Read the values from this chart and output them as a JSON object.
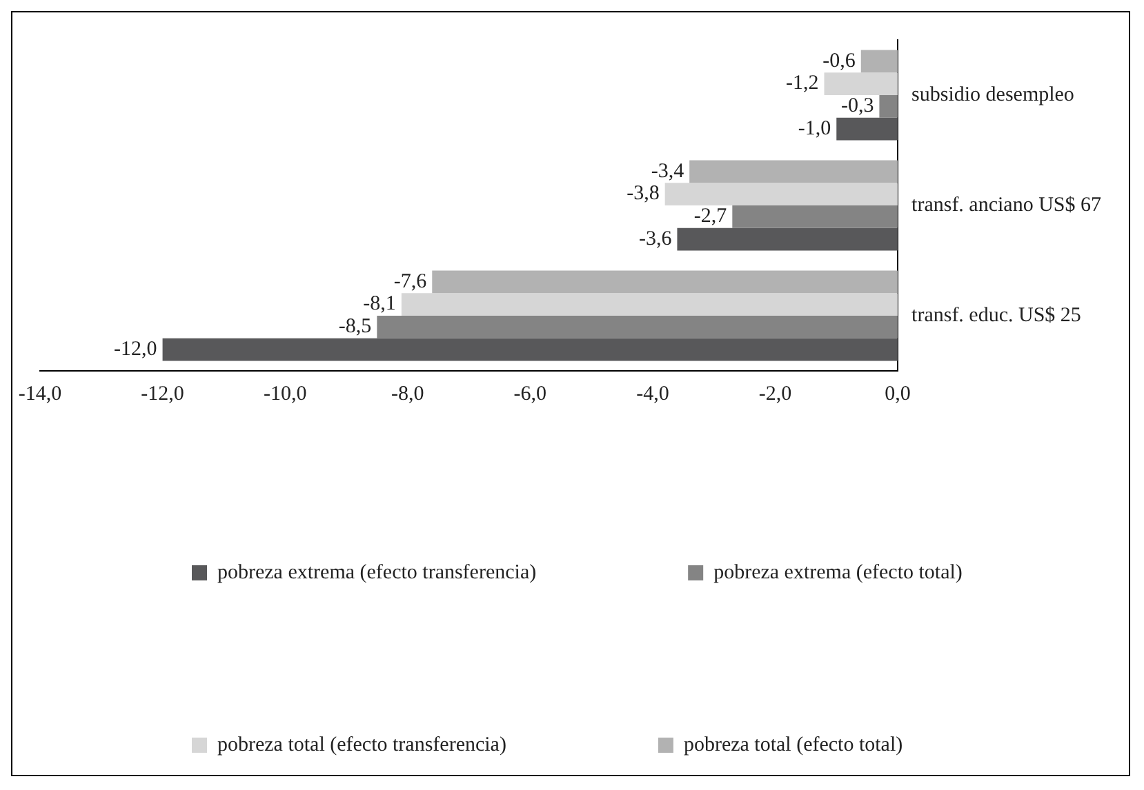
{
  "chart_data": {
    "type": "bar",
    "orientation": "horizontal",
    "categories": [
      "subsidio desempleo",
      "transf. anciano US$ 67",
      "transf. educ. US$ 25"
    ],
    "series": [
      {
        "name": "pobreza extrema (efecto transferencia)",
        "color": "#58585a",
        "values": [
          -1.0,
          -3.6,
          -12.0
        ],
        "value_labels": [
          "-1,0",
          "-3,6",
          "-12,0"
        ]
      },
      {
        "name": "pobreza extrema (efecto total)",
        "color": "#848484",
        "values": [
          -0.3,
          -2.7,
          -8.5
        ],
        "value_labels": [
          "-0,3",
          "-2,7",
          "-8,5"
        ]
      },
      {
        "name": "pobreza total (efecto transferencia)",
        "color": "#d6d6d6",
        "values": [
          -1.2,
          -3.8,
          -8.1
        ],
        "value_labels": [
          "-1,2",
          "-3,8",
          "-8,1"
        ]
      },
      {
        "name": "pobreza total (efecto total)",
        "color": "#b2b2b2",
        "values": [
          -0.6,
          -3.4,
          -7.6
        ],
        "value_labels": [
          "-0,6",
          "-3,4",
          "-7,6"
        ]
      }
    ],
    "xlim": [
      -14,
      0
    ],
    "xticks": [
      {
        "value": -14,
        "label": "-14,0"
      },
      {
        "value": -12,
        "label": "-12,0"
      },
      {
        "value": -10,
        "label": "-10,0"
      },
      {
        "value": -8,
        "label": "-8,0"
      },
      {
        "value": -6,
        "label": "-6,0"
      },
      {
        "value": -4,
        "label": "-4,0"
      },
      {
        "value": -2,
        "label": "-2,0"
      },
      {
        "value": 0,
        "label": "0,0"
      }
    ],
    "grid": false,
    "legend": "bottom"
  }
}
